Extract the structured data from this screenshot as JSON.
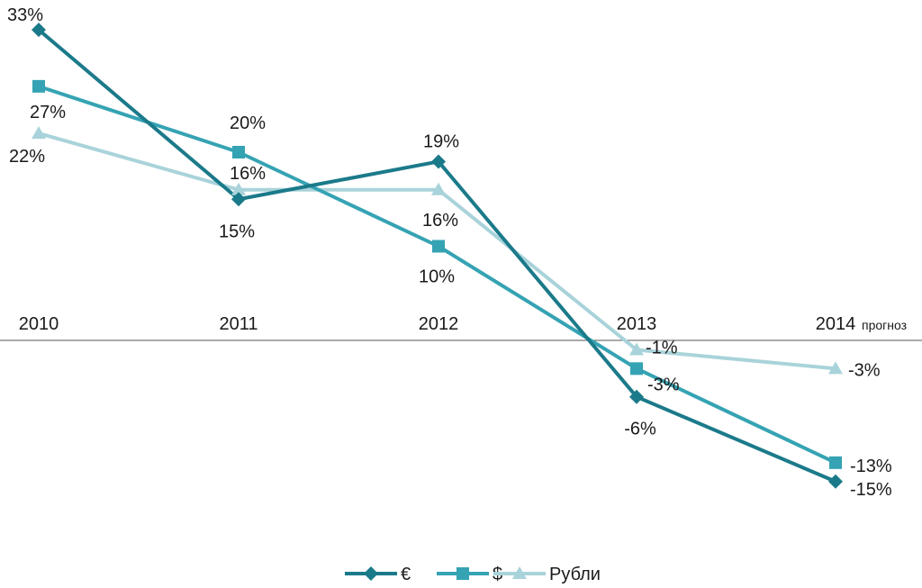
{
  "chart_data": {
    "type": "line",
    "title": "",
    "xlabel": "",
    "ylabel": "",
    "categories": [
      "2010",
      "2011",
      "2012",
      "2013",
      "2014"
    ],
    "category_note": "прогноз",
    "ylim": [
      -20,
      35
    ],
    "grid": false,
    "legend_position": "bottom-center",
    "series": [
      {
        "name": "€",
        "marker": "diamond",
        "color": "#1b7a8a",
        "values": [
          33,
          15,
          19,
          -6,
          -15
        ],
        "labels": [
          "33%",
          "15%",
          "19%",
          "-6%",
          "-15%"
        ]
      },
      {
        "name": "$",
        "marker": "square",
        "color": "#35a3b3",
        "values": [
          27,
          20,
          10,
          -3,
          -13
        ],
        "labels": [
          "27%",
          "20%",
          "10%",
          "-3%",
          "-13%"
        ]
      },
      {
        "name": "Рубли",
        "marker": "triangle",
        "color": "#a9d3da",
        "values": [
          22,
          16,
          16,
          -1,
          -3
        ],
        "labels": [
          "22%",
          "16%",
          "16%",
          "-1%",
          "-3%"
        ]
      }
    ]
  }
}
